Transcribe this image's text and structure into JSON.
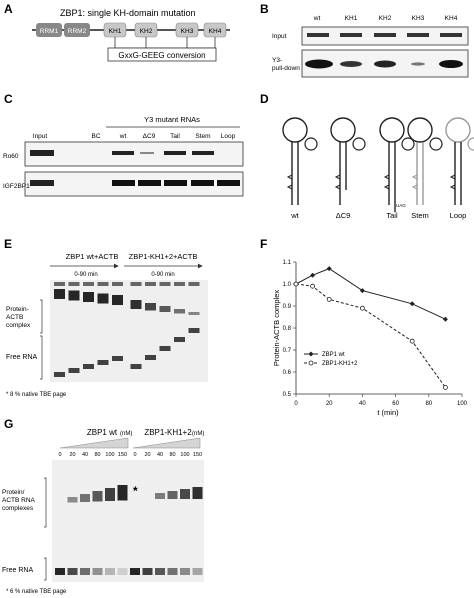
{
  "panel_letters": {
    "A": "A",
    "B": "B",
    "C": "C",
    "D": "D",
    "E": "E",
    "F": "F",
    "G": "G"
  },
  "panelA": {
    "title": "ZBP1: single KH-domain mutation",
    "domains": [
      "RRM1",
      "RRM2",
      "KH1",
      "KH2",
      "KH3",
      "KH4"
    ],
    "conversion": "GxxG-GEEG conversion"
  },
  "panelB": {
    "lanes": [
      "wt",
      "KH1",
      "KH2",
      "KH3",
      "KH4"
    ],
    "rows": [
      "Input",
      "Y3-\npull-down"
    ],
    "row_input": "Input",
    "row_pd1": "Y3-",
    "row_pd2": "pull-down"
  },
  "panelC": {
    "header": "Y3 mutant RNAs",
    "lanes": [
      "Input",
      "BC",
      "wt",
      "ΔC9",
      "Tail",
      "Stem",
      "Loop"
    ],
    "rows": [
      "Ro60",
      "IGF2BP1"
    ]
  },
  "panelD": {
    "labels": [
      "wt",
      "ΔC9",
      "Tail",
      "Stem",
      "Loop"
    ],
    "tail_seq": "UAG"
  },
  "panelE": {
    "group1": "ZBP1 wt+ACTB",
    "group2": "ZBP1-KH1+2+ACTB",
    "range1": "0-90 min",
    "range2": "0-90 min",
    "complex_label_1": "Protein-",
    "complex_label_2": "ACTB",
    "complex_label_3": "complex",
    "free_label": "Free RNA",
    "footnote": "* 8 % native TBE page"
  },
  "chart_data": {
    "type": "line",
    "xlabel": "t (min)",
    "ylabel": "Protein-ACTB complex",
    "xlim": [
      0,
      100
    ],
    "ylim": [
      0.5,
      1.1
    ],
    "xticks": [
      0,
      20,
      40,
      60,
      80,
      100
    ],
    "yticks": [
      0.5,
      0.6,
      0.7,
      0.8,
      0.9,
      1.0,
      1.1
    ],
    "legend_position": "bottom-left",
    "series": [
      {
        "name": "ZBP1 wt",
        "style": "solid-filled",
        "x": [
          0,
          10,
          20,
          40,
          70,
          90
        ],
        "y": [
          1.0,
          1.04,
          1.07,
          0.97,
          0.91,
          0.84
        ]
      },
      {
        "name": "ZBP1-KH1+2",
        "style": "dashed-open",
        "x": [
          0,
          10,
          20,
          40,
          70,
          90
        ],
        "y": [
          1.0,
          0.99,
          0.93,
          0.89,
          0.74,
          0.53
        ]
      }
    ]
  },
  "panelG": {
    "group1": "ZBP1 wt",
    "group2": "ZBP1-KH1+2",
    "unit": "(nM)",
    "conc1": [
      "0",
      "20",
      "40",
      "80",
      "100",
      "150"
    ],
    "conc2": [
      "0",
      "20",
      "40",
      "80",
      "100",
      "150"
    ],
    "star": "*",
    "complex_label_1": "Protein/",
    "complex_label_2": "ACTB RNA",
    "complex_label_3": "complexes",
    "free_label": "Free RNA",
    "footnote": "* 6 % native TBE page"
  },
  "colors": {
    "ink": "#111111",
    "domain_fill": "#c8c8c8",
    "domain_dark": "#777777",
    "gel_bg": "#f2f2f2",
    "band": "#1a1a1a"
  }
}
